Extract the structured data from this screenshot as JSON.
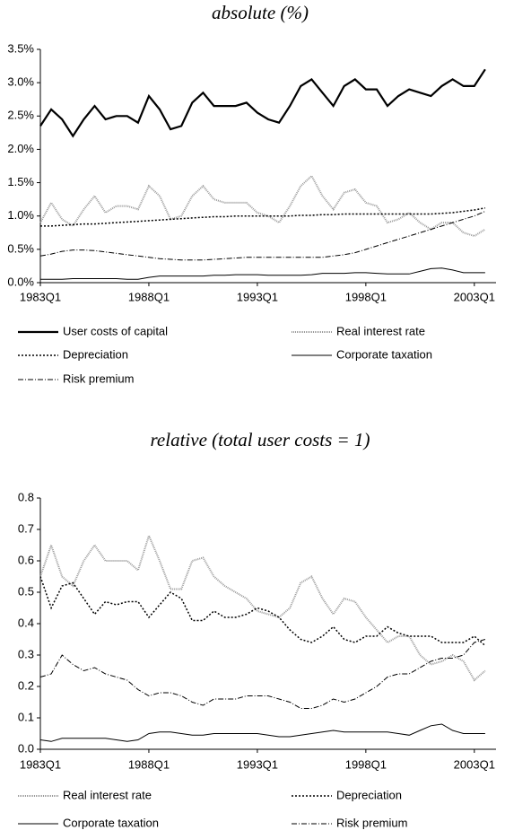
{
  "chart_data": [
    {
      "type": "line",
      "title": "absolute (%)",
      "x": [
        1983,
        1983.5,
        1984,
        1984.5,
        1985,
        1985.5,
        1986,
        1986.5,
        1987,
        1987.5,
        1988,
        1988.5,
        1989,
        1989.5,
        1990,
        1990.5,
        1991,
        1991.5,
        1992,
        1992.5,
        1993,
        1993.5,
        1994,
        1994.5,
        1995,
        1995.5,
        1996,
        1996.5,
        1997,
        1997.5,
        1998,
        1998.5,
        1999,
        1999.5,
        2000,
        2000.5,
        2001,
        2001.5,
        2002,
        2002.5,
        2003,
        2003.5
      ],
      "xlim": [
        1983,
        2004
      ],
      "xticks": [
        {
          "value": 1983,
          "label": "1983Q1"
        },
        {
          "value": 1988,
          "label": "1988Q1"
        },
        {
          "value": 1993,
          "label": "1993Q1"
        },
        {
          "value": 1998,
          "label": "1998Q1"
        },
        {
          "value": 2003,
          "label": "2003Q1"
        }
      ],
      "ylim": [
        0,
        3.5
      ],
      "yticks": [
        {
          "value": 0,
          "label": "0.0%"
        },
        {
          "value": 0.5,
          "label": "0.5%"
        },
        {
          "value": 1,
          "label": "1.0%"
        },
        {
          "value": 1.5,
          "label": "1.5%"
        },
        {
          "value": 2,
          "label": "2.0%"
        },
        {
          "value": 2.5,
          "label": "2.5%"
        },
        {
          "value": 3,
          "label": "3.0%"
        },
        {
          "value": 3.5,
          "label": "3.5%"
        }
      ],
      "series": [
        {
          "name": "User costs of capital",
          "color": "#000000",
          "width": 2.2,
          "dash": "none",
          "values": [
            2.35,
            2.6,
            2.45,
            2.2,
            2.45,
            2.65,
            2.45,
            2.5,
            2.5,
            2.4,
            2.8,
            2.6,
            2.3,
            2.35,
            2.7,
            2.85,
            2.65,
            2.65,
            2.65,
            2.7,
            2.55,
            2.45,
            2.4,
            2.65,
            2.95,
            3.05,
            2.85,
            2.65,
            2.95,
            3.05,
            2.9,
            2.9,
            2.65,
            2.8,
            2.9,
            2.85,
            2.8,
            2.95,
            3.05,
            2.95,
            2.95,
            3.2
          ]
        },
        {
          "name": "Real interest rate",
          "color": "#999999",
          "width": 2,
          "dash": "1,1",
          "values": [
            0.9,
            1.2,
            0.95,
            0.85,
            1.1,
            1.3,
            1.05,
            1.15,
            1.15,
            1.1,
            1.45,
            1.3,
            0.95,
            1.0,
            1.3,
            1.45,
            1.25,
            1.2,
            1.2,
            1.2,
            1.05,
            1.0,
            0.9,
            1.15,
            1.45,
            1.6,
            1.3,
            1.1,
            1.35,
            1.4,
            1.2,
            1.15,
            0.9,
            0.95,
            1.05,
            0.9,
            0.8,
            0.9,
            0.9,
            0.75,
            0.7,
            0.8
          ]
        },
        {
          "name": "Depreciation",
          "color": "#000000",
          "width": 1.5,
          "dash": "2,2",
          "values": [
            0.85,
            0.85,
            0.86,
            0.87,
            0.88,
            0.88,
            0.89,
            0.9,
            0.91,
            0.92,
            0.93,
            0.94,
            0.95,
            0.96,
            0.97,
            0.98,
            0.99,
            0.99,
            1.0,
            1.0,
            1.0,
            1.0,
            1.0,
            1.0,
            1.01,
            1.01,
            1.02,
            1.02,
            1.03,
            1.03,
            1.03,
            1.03,
            1.03,
            1.03,
            1.03,
            1.03,
            1.03,
            1.04,
            1.05,
            1.07,
            1.09,
            1.12
          ]
        },
        {
          "name": "Corporate taxation",
          "color": "#000000",
          "width": 1,
          "dash": "none",
          "values": [
            0.05,
            0.05,
            0.05,
            0.06,
            0.06,
            0.06,
            0.06,
            0.06,
            0.05,
            0.05,
            0.08,
            0.1,
            0.1,
            0.1,
            0.1,
            0.1,
            0.11,
            0.11,
            0.12,
            0.12,
            0.12,
            0.11,
            0.11,
            0.11,
            0.11,
            0.12,
            0.14,
            0.14,
            0.14,
            0.15,
            0.15,
            0.14,
            0.13,
            0.13,
            0.13,
            0.17,
            0.21,
            0.22,
            0.19,
            0.15,
            0.15,
            0.15
          ]
        },
        {
          "name": "Risk premium",
          "color": "#000000",
          "width": 1,
          "dash": "6,2,1,2",
          "values": [
            0.4,
            0.43,
            0.47,
            0.49,
            0.49,
            0.48,
            0.46,
            0.44,
            0.42,
            0.4,
            0.38,
            0.36,
            0.35,
            0.34,
            0.34,
            0.34,
            0.35,
            0.36,
            0.37,
            0.38,
            0.38,
            0.38,
            0.38,
            0.38,
            0.38,
            0.38,
            0.38,
            0.4,
            0.42,
            0.45,
            0.5,
            0.55,
            0.6,
            0.65,
            0.7,
            0.75,
            0.8,
            0.85,
            0.9,
            0.95,
            1.0,
            1.07
          ]
        }
      ]
    },
    {
      "type": "line",
      "title": "relative (total user costs = 1)",
      "x": [
        1983,
        1983.5,
        1984,
        1984.5,
        1985,
        1985.5,
        1986,
        1986.5,
        1987,
        1987.5,
        1988,
        1988.5,
        1989,
        1989.5,
        1990,
        1990.5,
        1991,
        1991.5,
        1992,
        1992.5,
        1993,
        1993.5,
        1994,
        1994.5,
        1995,
        1995.5,
        1996,
        1996.5,
        1997,
        1997.5,
        1998,
        1998.5,
        1999,
        1999.5,
        2000,
        2000.5,
        2001,
        2001.5,
        2002,
        2002.5,
        2003,
        2003.5
      ],
      "xlim": [
        1983,
        2004
      ],
      "xticks": [
        {
          "value": 1983,
          "label": "1983Q1"
        },
        {
          "value": 1988,
          "label": "1988Q1"
        },
        {
          "value": 1993,
          "label": "1993Q1"
        },
        {
          "value": 1998,
          "label": "1998Q1"
        },
        {
          "value": 2003,
          "label": "2003Q1"
        }
      ],
      "ylim": [
        0,
        0.8
      ],
      "yticks": [
        {
          "value": 0,
          "label": "0.0"
        },
        0.1,
        0.2,
        0.3,
        0.4,
        0.5,
        0.6,
        0.7,
        0.8
      ],
      "series": [
        {
          "name": "Real interest rate",
          "color": "#999999",
          "width": 2,
          "dash": "1,1",
          "values": [
            0.55,
            0.65,
            0.55,
            0.52,
            0.6,
            0.65,
            0.6,
            0.6,
            0.6,
            0.57,
            0.68,
            0.6,
            0.51,
            0.51,
            0.6,
            0.61,
            0.55,
            0.52,
            0.5,
            0.48,
            0.44,
            0.43,
            0.42,
            0.45,
            0.53,
            0.55,
            0.48,
            0.43,
            0.48,
            0.47,
            0.42,
            0.38,
            0.34,
            0.36,
            0.36,
            0.3,
            0.27,
            0.28,
            0.3,
            0.28,
            0.22,
            0.25
          ]
        },
        {
          "name": "Depreciation",
          "color": "#000000",
          "width": 1.5,
          "dash": "2,2",
          "values": [
            0.55,
            0.45,
            0.52,
            0.53,
            0.48,
            0.43,
            0.47,
            0.46,
            0.47,
            0.47,
            0.42,
            0.46,
            0.5,
            0.48,
            0.41,
            0.41,
            0.44,
            0.42,
            0.42,
            0.43,
            0.45,
            0.44,
            0.42,
            0.38,
            0.35,
            0.34,
            0.36,
            0.39,
            0.35,
            0.34,
            0.36,
            0.36,
            0.39,
            0.37,
            0.36,
            0.36,
            0.36,
            0.34,
            0.34,
            0.34,
            0.36,
            0.33
          ]
        },
        {
          "name": "Corporate taxation",
          "color": "#000000",
          "width": 1,
          "dash": "none",
          "values": [
            0.03,
            0.025,
            0.035,
            0.035,
            0.035,
            0.035,
            0.035,
            0.03,
            0.025,
            0.03,
            0.05,
            0.055,
            0.055,
            0.05,
            0.045,
            0.045,
            0.05,
            0.05,
            0.05,
            0.05,
            0.05,
            0.045,
            0.04,
            0.04,
            0.045,
            0.05,
            0.055,
            0.06,
            0.055,
            0.055,
            0.055,
            0.055,
            0.055,
            0.05,
            0.045,
            0.06,
            0.075,
            0.08,
            0.06,
            0.05,
            0.05,
            0.05
          ]
        },
        {
          "name": "Risk premium",
          "color": "#000000",
          "width": 1,
          "dash": "6,2,1,2",
          "values": [
            0.23,
            0.24,
            0.3,
            0.27,
            0.25,
            0.26,
            0.24,
            0.23,
            0.22,
            0.19,
            0.17,
            0.18,
            0.18,
            0.17,
            0.15,
            0.14,
            0.16,
            0.16,
            0.16,
            0.17,
            0.17,
            0.17,
            0.16,
            0.15,
            0.13,
            0.13,
            0.14,
            0.16,
            0.15,
            0.16,
            0.18,
            0.2,
            0.23,
            0.24,
            0.24,
            0.26,
            0.28,
            0.29,
            0.29,
            0.3,
            0.34,
            0.35
          ]
        }
      ]
    }
  ]
}
